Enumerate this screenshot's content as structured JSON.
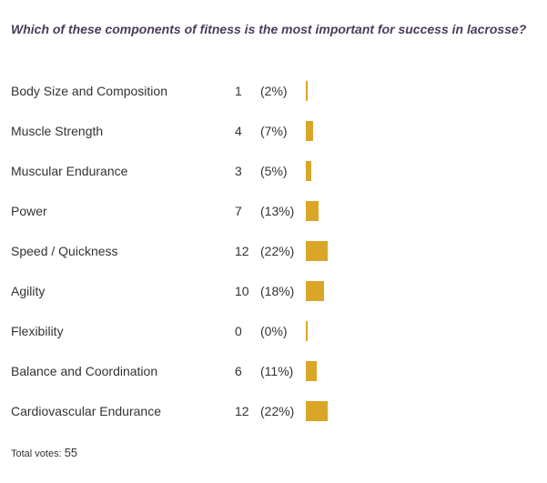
{
  "poll": {
    "question": "Which of these components of fitness is the most important for success in lacrosse?",
    "total_label": "Total votes:",
    "total_votes": "55"
  },
  "colors": {
    "bar": "#d9a627",
    "question": "#4a3b5a"
  },
  "chart_data": {
    "type": "bar",
    "title": "Which of these components of fitness is the most important for success in lacrosse?",
    "categories": [
      "Body Size and Composition",
      "Muscle Strength",
      "Muscular Endurance",
      "Power",
      "Speed / Quickness",
      "Agility",
      "Flexibility",
      "Balance and Coordination",
      "Cardiovascular Endurance"
    ],
    "values": [
      1,
      4,
      3,
      7,
      12,
      10,
      0,
      6,
      12
    ],
    "percent_labels": [
      "(2%)",
      "(7%)",
      "(5%)",
      "(13%)",
      "(22%)",
      "(18%)",
      "(0%)",
      "(11%)",
      "(22%)"
    ],
    "orientation": "horizontal",
    "grid": false,
    "legend": "none"
  }
}
